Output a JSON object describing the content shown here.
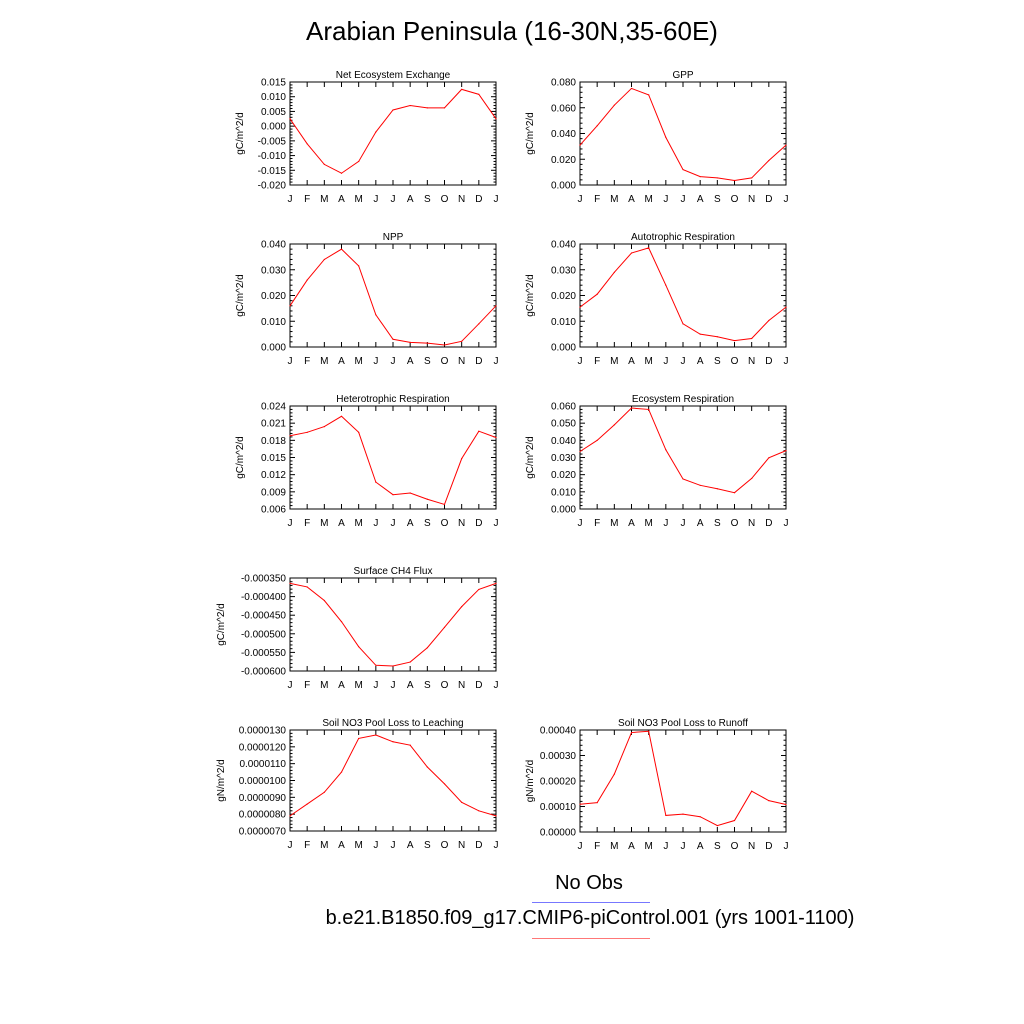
{
  "title": "Arabian Peninsula (16-30N,35-60E)",
  "line_color": "#ff0000",
  "legend": {
    "obs_label": "No Obs",
    "obs_color": "#7777ff",
    "model_label": "b.e21.B1850.f09_g17.CMIP6-piControl.001 (yrs 1001-1100)",
    "model_color": "#ff7777"
  },
  "chart_data": [
    {
      "type": "line",
      "title": "Net Ecosystem Exchange",
      "ylabel": "gC/m^2/d",
      "categories": [
        "J",
        "F",
        "M",
        "A",
        "M",
        "J",
        "J",
        "A",
        "S",
        "O",
        "N",
        "D",
        "J"
      ],
      "values": [
        0.0025,
        -0.006,
        -0.013,
        -0.016,
        -0.012,
        -0.002,
        0.0055,
        0.007,
        0.0062,
        0.0062,
        0.0125,
        0.0108,
        0.0025
      ],
      "ylim": [
        -0.02,
        0.015
      ],
      "yticks": [
        "0.015",
        "0.010",
        "0.005",
        "0.000",
        "-0.005",
        "-0.010",
        "-0.015",
        "-0.020"
      ]
    },
    {
      "type": "line",
      "title": "GPP",
      "ylabel": "gC/m^2/d",
      "categories": [
        "J",
        "F",
        "M",
        "A",
        "M",
        "J",
        "J",
        "A",
        "S",
        "O",
        "N",
        "D",
        "J"
      ],
      "values": [
        0.031,
        0.046,
        0.062,
        0.075,
        0.07,
        0.037,
        0.012,
        0.0065,
        0.0055,
        0.0035,
        0.0055,
        0.019,
        0.031
      ],
      "ylim": [
        0,
        0.08
      ],
      "yticks": [
        "0.080",
        "0.060",
        "0.040",
        "0.020",
        "0.000"
      ]
    },
    {
      "type": "line",
      "title": "NPP",
      "ylabel": "gC/m^2/d",
      "categories": [
        "J",
        "F",
        "M",
        "A",
        "M",
        "J",
        "J",
        "A",
        "S",
        "O",
        "N",
        "D",
        "J"
      ],
      "values": [
        0.016,
        0.026,
        0.034,
        0.038,
        0.0315,
        0.0125,
        0.003,
        0.0018,
        0.0015,
        0.0008,
        0.0022,
        0.009,
        0.016
      ],
      "ylim": [
        0,
        0.04
      ],
      "yticks": [
        "0.040",
        "0.030",
        "0.020",
        "0.010",
        "0.000"
      ]
    },
    {
      "type": "line",
      "title": "Autotrophic Respiration",
      "ylabel": "gC/m^2/d",
      "categories": [
        "J",
        "F",
        "M",
        "A",
        "M",
        "J",
        "J",
        "A",
        "S",
        "O",
        "N",
        "D",
        "J"
      ],
      "values": [
        0.0155,
        0.0205,
        0.029,
        0.0365,
        0.0385,
        0.024,
        0.009,
        0.005,
        0.004,
        0.0025,
        0.0033,
        0.0103,
        0.0155
      ],
      "ylim": [
        0,
        0.04
      ],
      "yticks": [
        "0.040",
        "0.030",
        "0.020",
        "0.010",
        "0.000"
      ]
    },
    {
      "type": "line",
      "title": "Heterotrophic Respiration",
      "ylabel": "gC/m^2/d",
      "categories": [
        "J",
        "F",
        "M",
        "A",
        "M",
        "J",
        "J",
        "A",
        "S",
        "O",
        "N",
        "D",
        "J"
      ],
      "values": [
        0.0188,
        0.0194,
        0.0204,
        0.0222,
        0.0194,
        0.0107,
        0.0085,
        0.0088,
        0.0077,
        0.0068,
        0.0148,
        0.0196,
        0.0185
      ],
      "ylim": [
        0.006,
        0.024
      ],
      "yticks": [
        "0.024",
        "0.021",
        "0.018",
        "0.015",
        "0.012",
        "0.009",
        "0.006"
      ]
    },
    {
      "type": "line",
      "title": "Ecosystem Respiration",
      "ylabel": "gC/m^2/d",
      "categories": [
        "J",
        "F",
        "M",
        "A",
        "M",
        "J",
        "J",
        "A",
        "S",
        "O",
        "N",
        "D",
        "J"
      ],
      "values": [
        0.0335,
        0.04,
        0.049,
        0.0588,
        0.058,
        0.0345,
        0.0175,
        0.0138,
        0.0118,
        0.0095,
        0.0178,
        0.0298,
        0.034
      ],
      "ylim": [
        0,
        0.06
      ],
      "yticks": [
        "0.060",
        "0.050",
        "0.040",
        "0.030",
        "0.020",
        "0.010",
        "0.000"
      ]
    },
    {
      "type": "line",
      "title": "Surface CH4 Flux",
      "ylabel": "gC/m^2/d",
      "categories": [
        "J",
        "F",
        "M",
        "A",
        "M",
        "J",
        "J",
        "A",
        "S",
        "O",
        "N",
        "D",
        "J"
      ],
      "values": [
        -0.000355,
        -0.000365,
        -0.000403,
        -0.000462,
        -0.000532,
        -0.000584,
        -0.000586,
        -0.000575,
        -0.000535,
        -0.000478,
        -0.00042,
        -0.000372,
        -0.000355
      ],
      "ylim": [
        -0.0006,
        -0.00034
      ],
      "yticks": [
        "-0.000350",
        "-0.000400",
        "-0.000450",
        "-0.000500",
        "-0.000550",
        "-0.000600"
      ]
    },
    {
      "type": "line",
      "title": "Soil NO3 Pool Loss to Leaching",
      "ylabel": "gN/m^2/d",
      "categories": [
        "J",
        "F",
        "M",
        "A",
        "M",
        "J",
        "J",
        "A",
        "S",
        "O",
        "N",
        "D",
        "J"
      ],
      "values": [
        7.9e-06,
        8.6e-06,
        9.3e-06,
        1.05e-05,
        1.25e-05,
        1.27e-05,
        1.23e-05,
        1.21e-05,
        1.08e-05,
        9.8e-06,
        8.7e-06,
        8.2e-06,
        7.9e-06
      ],
      "ylim": [
        7e-06,
        1.3e-05
      ],
      "yticks": [
        "0.0000130",
        "0.0000120",
        "0.0000110",
        "0.0000100",
        "0.0000090",
        "0.0000080",
        "0.0000070"
      ]
    },
    {
      "type": "line",
      "title": "Soil NO3 Pool Loss to Runoff",
      "ylabel": "gN/m^2/d",
      "categories": [
        "J",
        "F",
        "M",
        "A",
        "M",
        "J",
        "J",
        "A",
        "S",
        "O",
        "N",
        "D",
        "J"
      ],
      "values": [
        0.000109,
        0.000115,
        0.000227,
        0.00039,
        0.000395,
        6.5e-05,
        7e-05,
        6e-05,
        2.5e-05,
        4.5e-05,
        0.00016,
        0.000123,
        0.000108
      ],
      "ylim": [
        0,
        0.0004
      ],
      "yticks": [
        "0.00040",
        "0.00030",
        "0.00020",
        "0.00010",
        "0.00000"
      ]
    }
  ]
}
